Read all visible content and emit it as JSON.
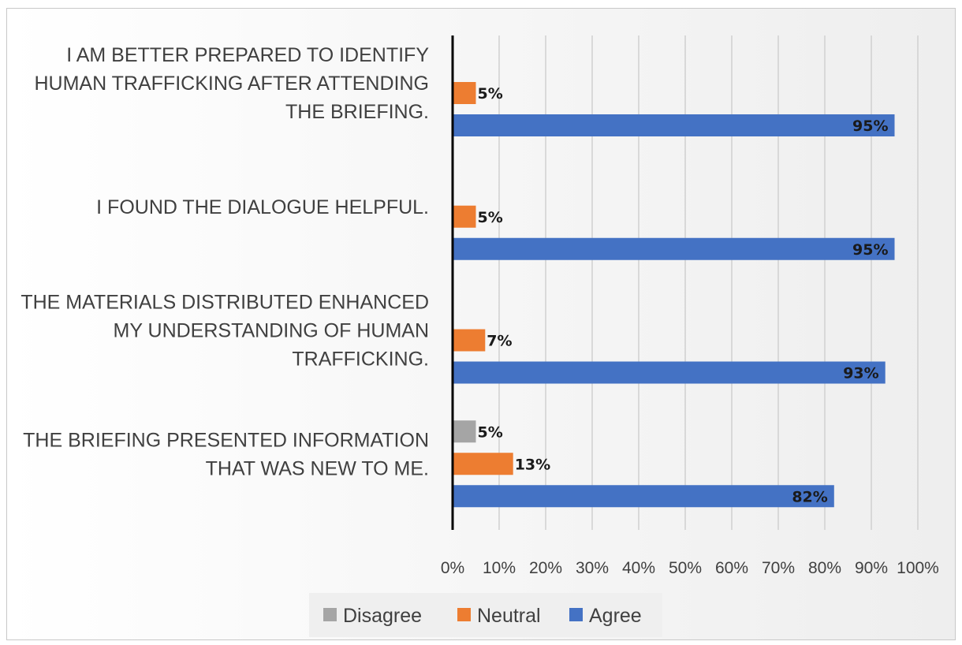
{
  "chart_data": {
    "type": "bar",
    "orientation": "horizontal",
    "categories": [
      [
        "I AM BETTER PREPARED TO IDENTIFY",
        "HUMAN TRAFFICKING AFTER ATTENDING",
        "THE BRIEFING."
      ],
      [
        "I FOUND THE DIALOGUE HELPFUL."
      ],
      [
        "THE MATERIALS DISTRIBUTED ENHANCED",
        "MY UNDERSTANDING OF HUMAN",
        "TRAFFICKING."
      ],
      [
        "THE BRIEFING PRESENTED INFORMATION",
        "THAT WAS NEW TO ME."
      ]
    ],
    "series": [
      {
        "name": "Disagree",
        "color": "#a5a5a5",
        "values": [
          0,
          0,
          0,
          5
        ],
        "labels": [
          "",
          "",
          "",
          "5%"
        ]
      },
      {
        "name": "Neutral",
        "color": "#ed7d31",
        "values": [
          5,
          5,
          7,
          13
        ],
        "labels": [
          "5%",
          "5%",
          "7%",
          "13%"
        ]
      },
      {
        "name": "Agree",
        "color": "#4472c4",
        "values": [
          95,
          95,
          93,
          82
        ],
        "labels": [
          "95%",
          "95%",
          "93%",
          "82%"
        ]
      }
    ],
    "x_ticks": [
      "0%",
      "10%",
      "20%",
      "30%",
      "40%",
      "50%",
      "60%",
      "70%",
      "80%",
      "90%",
      "100%"
    ],
    "xlim": [
      0,
      100
    ],
    "grid": "vertical",
    "legend": {
      "position": "bottom",
      "entries": [
        "Disagree",
        "Neutral",
        "Agree"
      ]
    },
    "colors": {
      "gridline": "#d0d0d0",
      "axis": "#000000",
      "legend_bg": "#efefef"
    }
  }
}
